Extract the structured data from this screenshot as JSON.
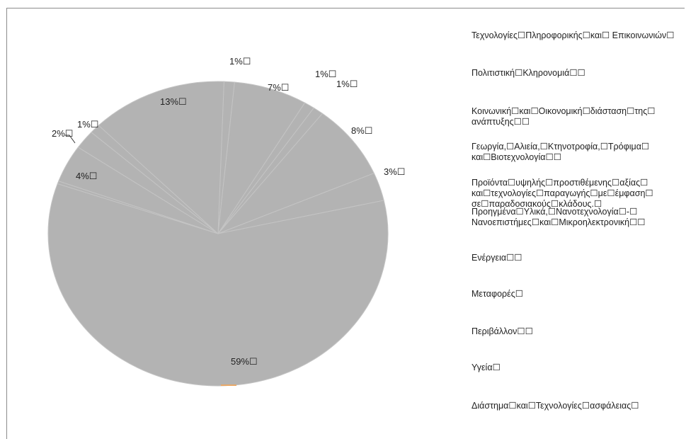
{
  "chart_data": {
    "type": "pie",
    "slices": [
      {
        "label": "Τεχνολογίες☐Πληροφορικής☐και☐ Επικοινωνιών☐",
        "value": 1,
        "data_label": "1%☐"
      },
      {
        "label": "Πολιτιστική☐Κληρονομιά☐☐",
        "value": 7,
        "data_label": "7%☐"
      },
      {
        "label": "Κοινωνική☐και☐Οικονομική☐διάσταση☐της☐ ανάπτυξης☐☐",
        "value": 1,
        "data_label": "1%☐"
      },
      {
        "label": "Γεωργία,☐Αλιεία,☐Κτηνοτροφία,☐Τρόφιμα☐ και☐Βιοτεχνολογία☐☐",
        "value": 1,
        "data_label": "1%☐"
      },
      {
        "label": "Προϊόντα☐υψηλής☐προστιθέμενης☐αξίας☐ και☐τεχνολογίες☐παραγωγής☐με☐έμφαση☐ σε☐παραδοσιακούς☐κλάδους.☐",
        "value": 8,
        "data_label": "8%☐"
      },
      {
        "label": "Προηγμένα☐Υλικά,☐Νανοτεχνολογία☐-☐ Νανοεπιστήμες☐και☐Μικροηλεκτρονική☐☐",
        "value": 3,
        "data_label": "3%☐"
      },
      {
        "label": "Ενέργεια☐☐",
        "value": 59,
        "data_label": "59%☐"
      },
      {
        "label": "Μεταφορές☐",
        "value": 0.3,
        "data_label": ""
      },
      {
        "label": "Περιβάλλον☐☐",
        "value": 4,
        "data_label": "4%☐"
      },
      {
        "label": "Υγεία☐",
        "value": 2,
        "data_label": "2%☐"
      },
      {
        "label": "Διάστημα☐και☐Τεχνολογίες☐ασφάλειας☐",
        "value": 1,
        "data_label": "1%☐"
      },
      {
        "label": "",
        "value": 13,
        "data_label": "13%☐"
      }
    ],
    "legend_position": "right",
    "slice_color": "#b3b3b3",
    "separator_color": "#c4c4c4"
  }
}
